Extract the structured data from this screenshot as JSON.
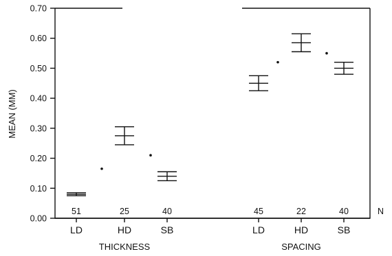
{
  "chart_data": {
    "type": "errorbar",
    "ylabel": "MEAN (MM)",
    "n_axis_label": "N",
    "ylim": [
      0,
      0.7
    ],
    "y_ticks": [
      "0.00",
      "0.10",
      "0.20",
      "0.30",
      "0.40",
      "0.50",
      "0.60",
      "0.70"
    ],
    "groups": [
      {
        "label": "THICKNESS",
        "items": [
          {
            "category": "LD",
            "mean": 0.08,
            "lower": 0.075,
            "upper": 0.085,
            "n": "51"
          },
          {
            "category": "HD",
            "mean": 0.275,
            "lower": 0.245,
            "upper": 0.305,
            "n": "25"
          },
          {
            "category": "SB",
            "mean": 0.14,
            "lower": 0.125,
            "upper": 0.155,
            "n": "40"
          }
        ],
        "dots": [
          0.165,
          0.21
        ]
      },
      {
        "label": "SPACING",
        "items": [
          {
            "category": "LD",
            "mean": 0.45,
            "lower": 0.425,
            "upper": 0.475,
            "n": "45"
          },
          {
            "category": "HD",
            "mean": 0.585,
            "lower": 0.555,
            "upper": 0.615,
            "n": "22"
          },
          {
            "category": "SB",
            "mean": 0.5,
            "lower": 0.48,
            "upper": 0.52,
            "n": "40"
          }
        ],
        "dots": [
          0.52,
          0.55
        ]
      }
    ]
  }
}
